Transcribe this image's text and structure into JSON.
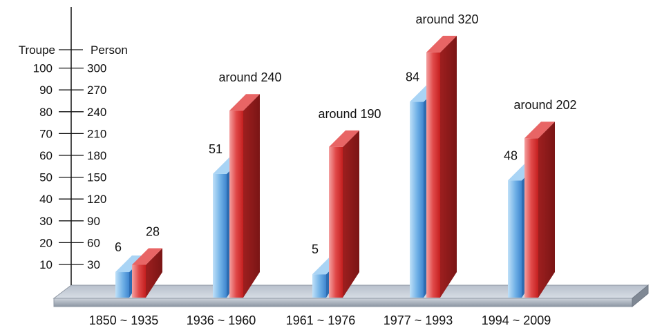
{
  "chart_data": {
    "type": "bar",
    "categories": [
      "1850 ~ 1935",
      "1936 ~ 1960",
      "1961 ~ 1976",
      "1977 ~ 1993",
      "1994 ~ 2009"
    ],
    "series": [
      {
        "name": "",
        "axis": "Troupe",
        "values": [
          6,
          51,
          5,
          84,
          48
        ],
        "labels": [
          "6",
          "51",
          "5",
          "84",
          "48"
        ],
        "color": "#4a90d9"
      },
      {
        "name": "",
        "axis": "Person",
        "values": [
          28,
          240,
          190,
          320,
          202
        ],
        "labels": [
          "28",
          "around 240",
          "around 190",
          "around 320",
          "around 202"
        ],
        "color": "#d42a2a"
      }
    ],
    "left_axis": {
      "title": "Troupe",
      "ticks": [
        "10",
        "20",
        "30",
        "40",
        "50",
        "60",
        "70",
        "80",
        "90",
        "100"
      ],
      "range": [
        0,
        100
      ]
    },
    "right_axis": {
      "title": "Person",
      "ticks": [
        "30",
        "60",
        "90",
        "120",
        "150",
        "180",
        "210",
        "240",
        "270",
        "300"
      ],
      "range": [
        0,
        300
      ]
    },
    "grid": false,
    "legend": "none"
  }
}
